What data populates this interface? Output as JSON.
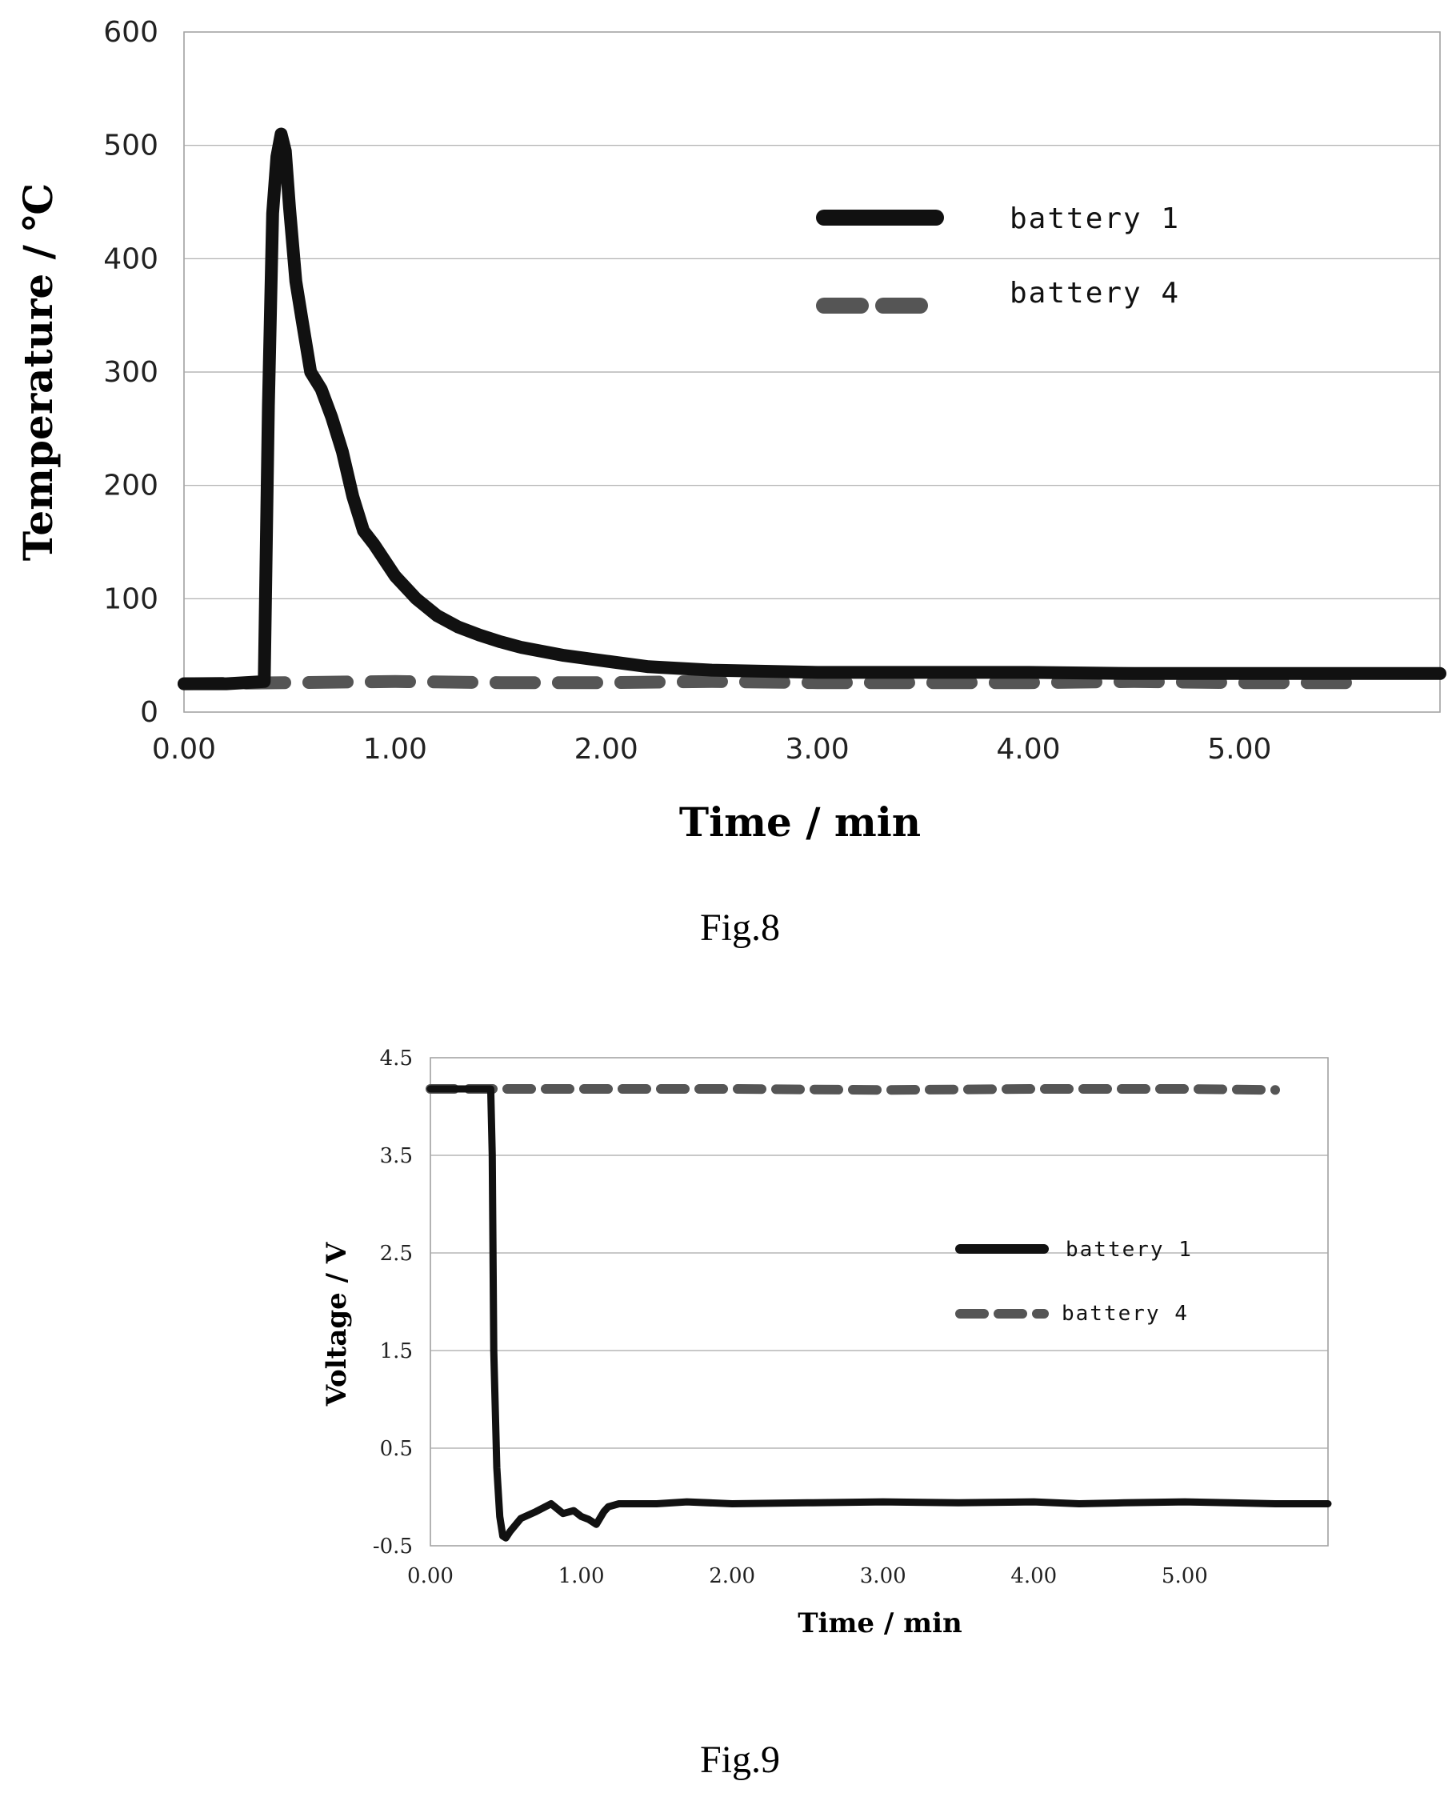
{
  "chart_data": [
    {
      "type": "line",
      "caption": "Fig.8",
      "xlabel": "Time / min",
      "ylabel": "Temperature / ℃",
      "xlim": [
        0,
        5.95
      ],
      "ylim": [
        0,
        600
      ],
      "x_ticks": [
        "0.00",
        "1.00",
        "2.00",
        "3.00",
        "4.00",
        "5.00"
      ],
      "y_ticks": [
        "0",
        "100",
        "200",
        "300",
        "400",
        "500",
        "600"
      ],
      "grid": "horizontal",
      "legend_position": "top-right",
      "series": [
        {
          "name": "battery 1",
          "style": "solid",
          "color": "#111111",
          "x": [
            0,
            0.2,
            0.38,
            0.4,
            0.42,
            0.44,
            0.46,
            0.48,
            0.5,
            0.53,
            0.56,
            0.6,
            0.65,
            0.7,
            0.75,
            0.8,
            0.85,
            0.9,
            1.0,
            1.1,
            1.2,
            1.3,
            1.4,
            1.5,
            1.6,
            1.8,
            2.0,
            2.2,
            2.5,
            3.0,
            3.5,
            4.0,
            4.5,
            5.0,
            5.5,
            5.95
          ],
          "y": [
            25,
            25,
            27,
            270,
            440,
            490,
            510,
            495,
            445,
            380,
            345,
            300,
            285,
            260,
            230,
            190,
            160,
            148,
            120,
            100,
            85,
            75,
            68,
            62,
            57,
            50,
            45,
            40,
            37,
            35,
            35,
            35,
            34,
            34,
            34,
            34
          ]
        },
        {
          "name": "battery 4",
          "style": "dashed",
          "color": "#555555",
          "x": [
            0,
            0.5,
            1.0,
            1.5,
            2.0,
            2.5,
            3.0,
            3.5,
            4.0,
            4.5,
            5.0,
            5.6
          ],
          "y": [
            25,
            26,
            27,
            26,
            26,
            27,
            26,
            26,
            26,
            27,
            26,
            26
          ]
        }
      ]
    },
    {
      "type": "line",
      "caption": "Fig.9",
      "xlabel": "Time / min",
      "ylabel": "Voltage / V",
      "xlim": [
        0,
        5.95
      ],
      "ylim": [
        -0.5,
        4.5
      ],
      "x_ticks": [
        "0.00",
        "1.00",
        "2.00",
        "3.00",
        "4.00",
        "5.00"
      ],
      "y_ticks": [
        "-0.5",
        "0.5",
        "1.5",
        "2.5",
        "3.5",
        "4.5"
      ],
      "grid": "horizontal",
      "legend_position": "center-right",
      "series": [
        {
          "name": "battery 1",
          "style": "solid",
          "color": "#111111",
          "x": [
            0,
            0.2,
            0.4,
            0.41,
            0.42,
            0.44,
            0.46,
            0.48,
            0.5,
            0.53,
            0.6,
            0.7,
            0.8,
            0.88,
            0.95,
            1.0,
            1.05,
            1.1,
            1.15,
            1.18,
            1.25,
            1.5,
            1.7,
            2.0,
            2.5,
            3.0,
            3.5,
            4.0,
            4.3,
            4.6,
            5.0,
            5.3,
            5.6,
            5.95
          ],
          "y": [
            4.18,
            4.18,
            4.18,
            3.5,
            1.5,
            0.3,
            -0.2,
            -0.4,
            -0.42,
            -0.35,
            -0.22,
            -0.15,
            -0.07,
            -0.17,
            -0.14,
            -0.2,
            -0.23,
            -0.28,
            -0.15,
            -0.1,
            -0.07,
            -0.07,
            -0.05,
            -0.07,
            -0.06,
            -0.05,
            -0.06,
            -0.05,
            -0.07,
            -0.06,
            -0.05,
            -0.06,
            -0.07,
            -0.07
          ]
        },
        {
          "name": "battery 4",
          "style": "dashed",
          "color": "#555555",
          "x": [
            0,
            1.0,
            2.0,
            3.0,
            4.0,
            5.0,
            5.6
          ],
          "y": [
            4.18,
            4.18,
            4.18,
            4.17,
            4.18,
            4.18,
            4.17
          ]
        }
      ]
    }
  ]
}
